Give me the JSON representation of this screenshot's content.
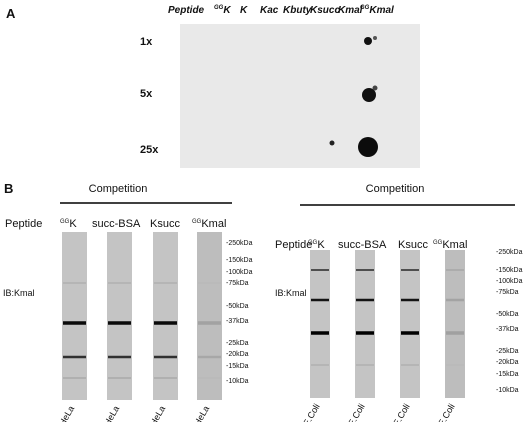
{
  "panel_a": {
    "label": "A",
    "peptide_label": "Peptide",
    "columns": [
      {
        "sup": "GG",
        "main": "K"
      },
      {
        "sup": "",
        "main": "K"
      },
      {
        "sup": "",
        "main": "Kac"
      },
      {
        "sup": "",
        "main": "Kbuty"
      },
      {
        "sup": "",
        "main": "Ksucc"
      },
      {
        "sup": "",
        "main": "Kmal"
      },
      {
        "sup": "GG",
        "main": "Kmal"
      }
    ],
    "rows": [
      "1x",
      "5x",
      "25x"
    ]
  },
  "panel_b": {
    "label": "B",
    "blots": [
      {
        "competition": "Competition",
        "peptide_label": "Peptide",
        "antibody": "IB:Kmal",
        "lanes": [
          {
            "sup": "GG",
            "main": "K",
            "sample": "HeLa"
          },
          {
            "sup": "",
            "main": "succ-BSA",
            "sample": "HeLa"
          },
          {
            "sup": "",
            "main": "Ksucc",
            "sample": "HeLa"
          },
          {
            "sup": "GG",
            "main": "Kmal",
            "sample": "HeLa"
          }
        ],
        "markers": [
          "-250kDa",
          "-150kDa",
          "-100kDa",
          "-75kDa",
          "-50kDa",
          "-37kDa",
          "-25kDa",
          "-20kDa",
          "-15kDa",
          "-10kDa"
        ]
      },
      {
        "competition": "Competition",
        "peptide_label": "Peptide",
        "antibody": "IB:Kmal",
        "lanes": [
          {
            "sup": "GG",
            "main": "K",
            "sample": "E.Coli"
          },
          {
            "sup": "",
            "main": "succ-BSA",
            "sample": "E.Coli"
          },
          {
            "sup": "",
            "main": "Ksucc",
            "sample": "E.Coli"
          },
          {
            "sup": "GG",
            "main": "Kmal",
            "sample": "E.Coli"
          }
        ],
        "markers": [
          "-250kDa",
          "-150kDa",
          "-100kDa",
          "-75kDa",
          "-50kDa",
          "-37kDa",
          "-25kDa",
          "-20kDa",
          "-15kDa",
          "-10kDa"
        ]
      }
    ]
  }
}
